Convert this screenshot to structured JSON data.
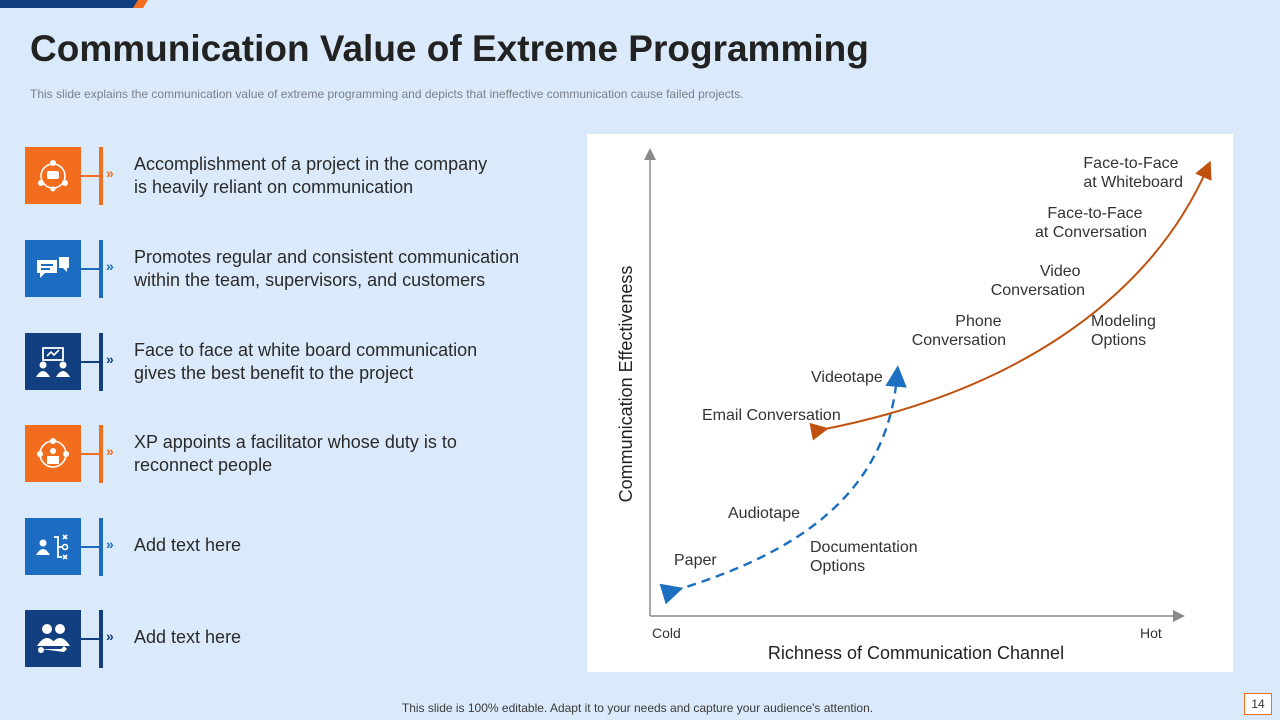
{
  "slide": {
    "title": "Communication Value of Extreme Programming",
    "subtitle": "This slide explains the communication value of extreme programming  and depicts that ineffective  communication cause failed projects.",
    "footer": "This slide is 100% editable. Adapt it to your needs and capture your audience's attention.",
    "page_number": "14"
  },
  "colors": {
    "orange": "#f26d1d",
    "blue": "#1c6dc2",
    "navy": "#123f7f",
    "dashed_curve": "#1d6fc0",
    "solid_curve": "#c0510f",
    "background": "#dbeafb"
  },
  "items": [
    {
      "icon": "team-network-icon",
      "color": "orange",
      "text": "Accomplishment of a project in the company\nis heavily reliant on communication"
    },
    {
      "icon": "chat-bubbles-icon",
      "color": "blue",
      "text": "Promotes regular and consistent communication\nwithin the team, supervisors, and customers"
    },
    {
      "icon": "whiteboard-meeting-icon",
      "color": "navy",
      "text": "Face to face at white board communication\ngives the best benefit to the project"
    },
    {
      "icon": "facilitator-icon",
      "color": "orange",
      "text": "XP appoints a facilitator whose duty is to\nreconnect people"
    },
    {
      "icon": "strategy-plan-icon",
      "color": "blue",
      "text": "Add text here"
    },
    {
      "icon": "support-team-icon",
      "color": "navy",
      "text": "Add text here"
    }
  ],
  "diagram": {
    "y_axis_label": "Communication Effectiveness",
    "x_axis_label": "Richness of Communication Channel",
    "x_min_label": "Cold",
    "x_max_label": "Hot",
    "labels": {
      "face_whiteboard": [
        "Face-to-Face",
        "at Whiteboard"
      ],
      "face_conversation": [
        "Face-to-Face",
        "at Conversation"
      ],
      "video_conversation": [
        "Video",
        "Conversation"
      ],
      "phone_conversation": [
        "Phone",
        "Conversation"
      ],
      "modeling_options": [
        "Modeling",
        "Options"
      ],
      "videotape": "Videotape",
      "email_conversation": "Email Conversation",
      "audiotape": "Audiotape",
      "documentation_options": [
        "Documentation",
        "Options"
      ],
      "paper": "Paper"
    }
  }
}
